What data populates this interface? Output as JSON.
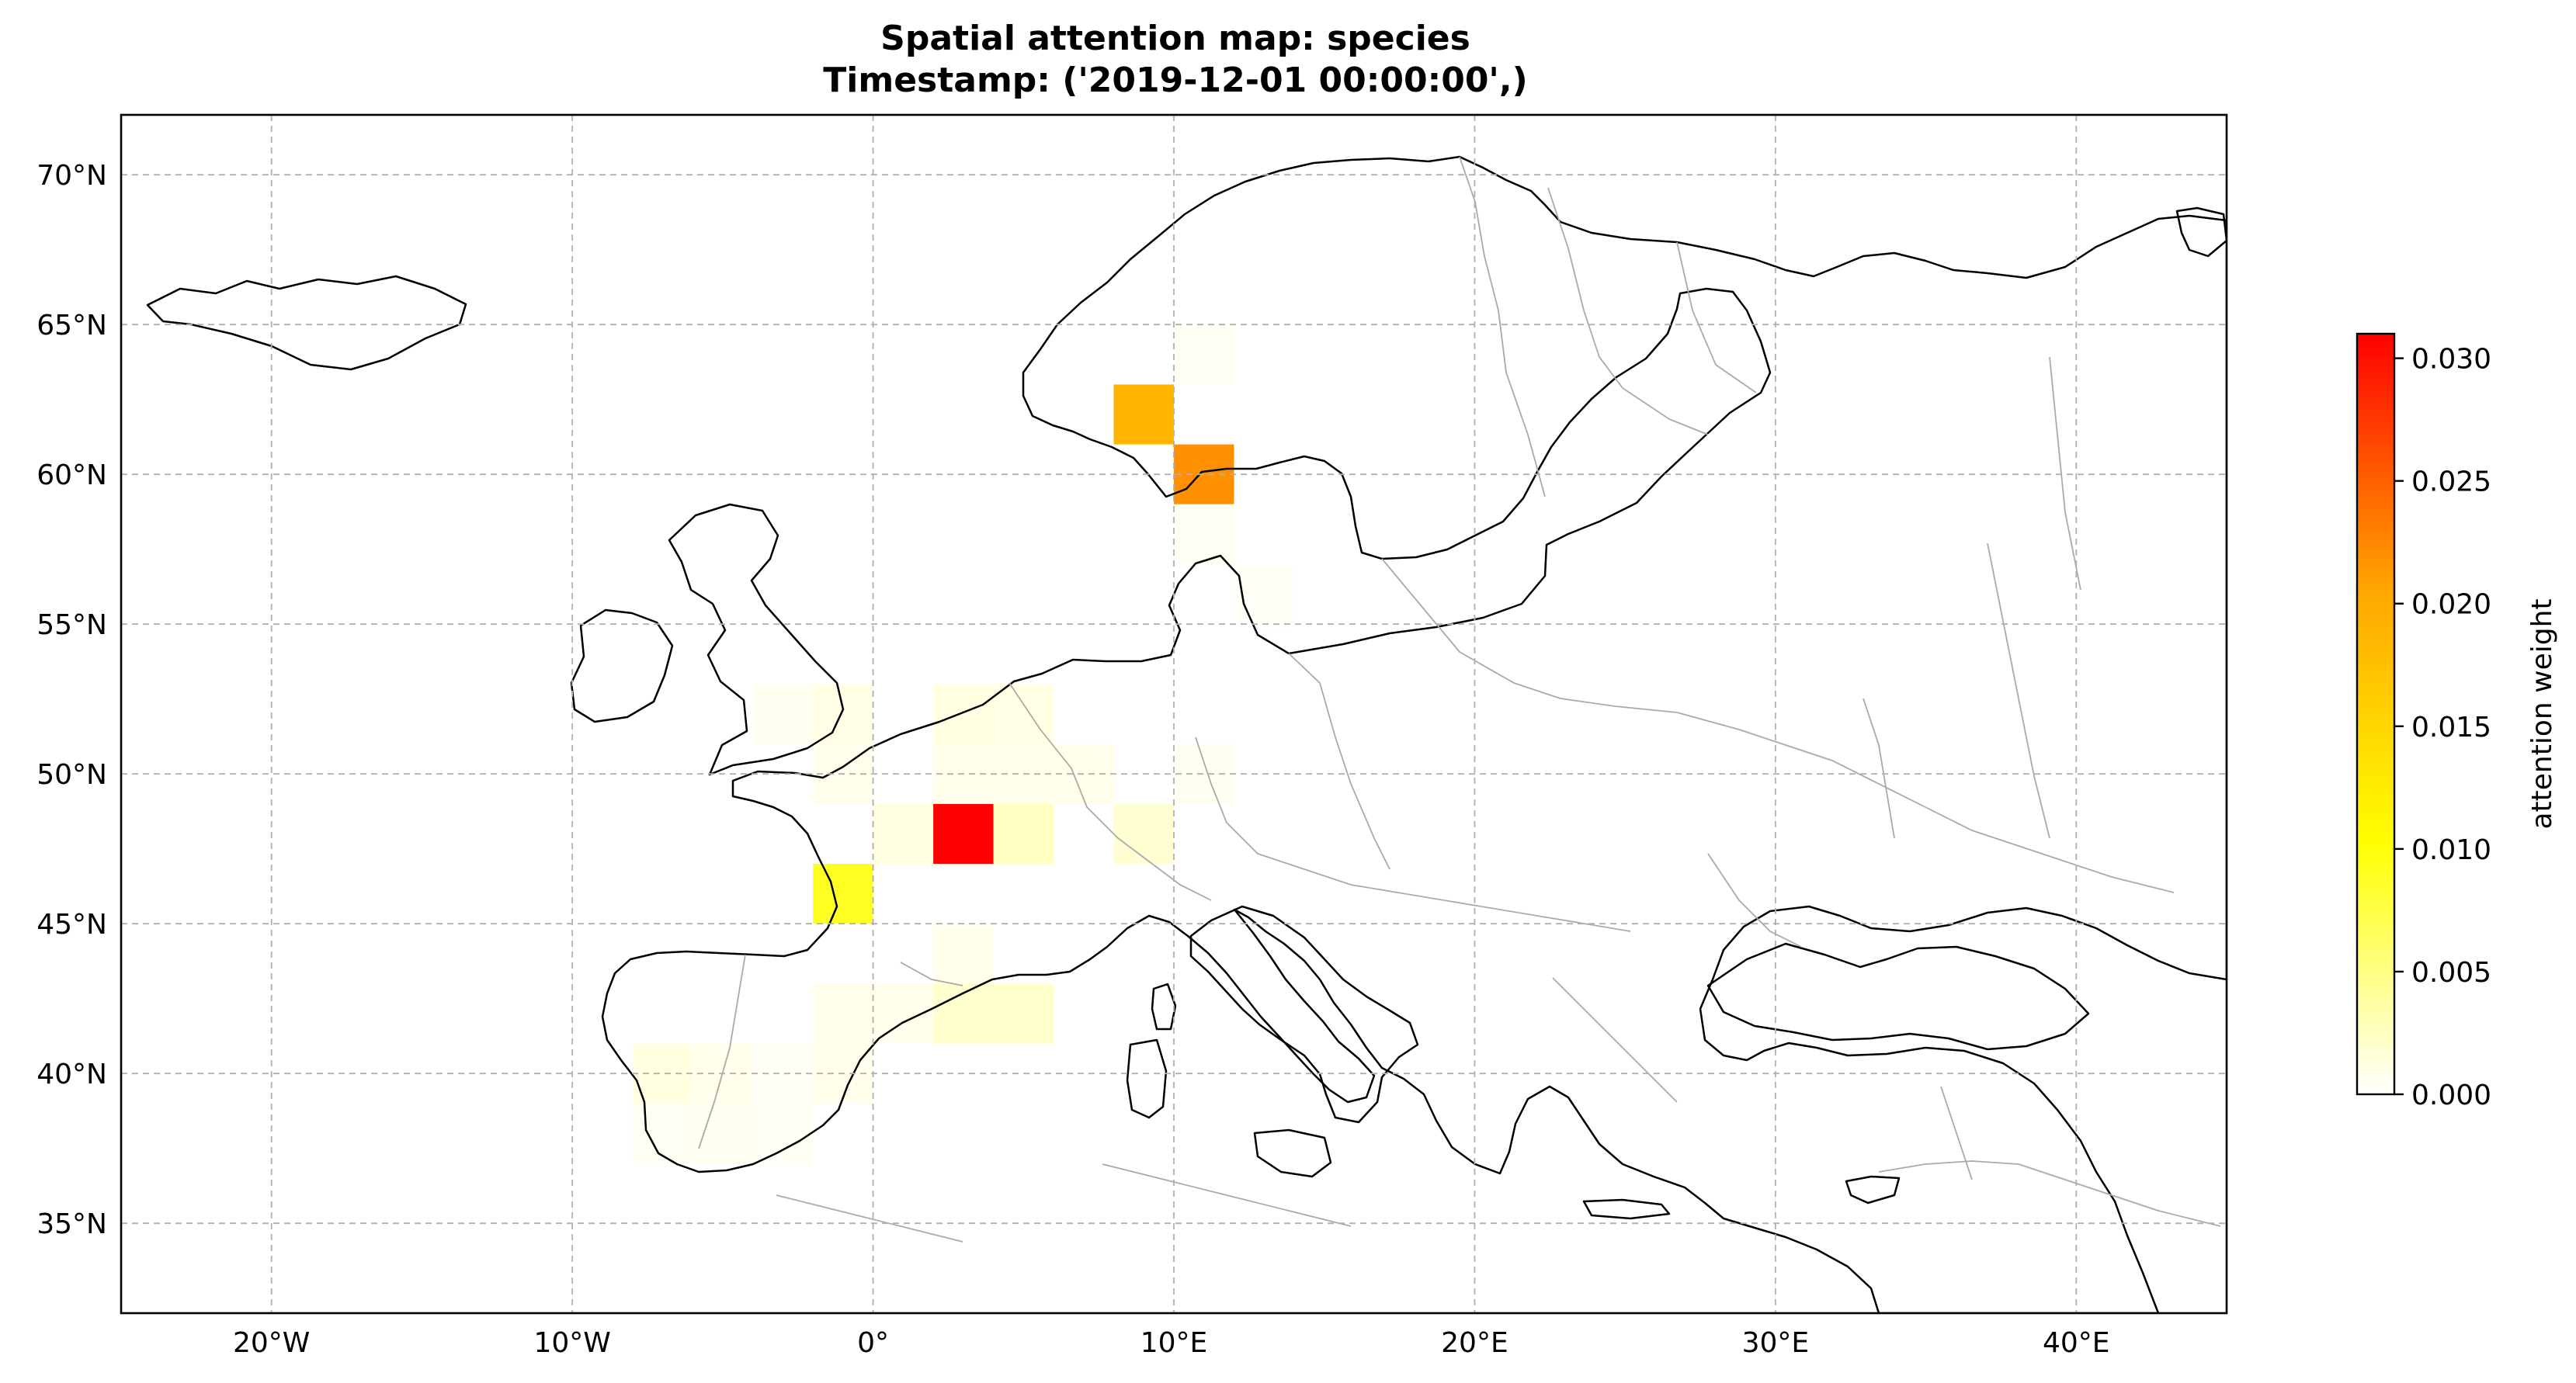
{
  "title": {
    "line1": "Spatial attention map: species",
    "line2": "Timestamp: ('2019-12-01 00:00:00',)"
  },
  "map": {
    "projection": "plate-carree",
    "lon_range": [
      -25,
      45
    ],
    "lat_range": [
      32,
      72
    ],
    "gridlines": true,
    "grid_style": "dashed",
    "lon_ticks": [
      {
        "value": -20,
        "label": "20°W"
      },
      {
        "value": -10,
        "label": "10°W"
      },
      {
        "value": 0,
        "label": "0°"
      },
      {
        "value": 10,
        "label": "10°E"
      },
      {
        "value": 20,
        "label": "20°E"
      },
      {
        "value": 30,
        "label": "30°E"
      },
      {
        "value": 40,
        "label": "40°E"
      }
    ],
    "lat_ticks": [
      {
        "value": 70,
        "label": "70°N"
      },
      {
        "value": 65,
        "label": "65°N"
      },
      {
        "value": 60,
        "label": "60°N"
      },
      {
        "value": 55,
        "label": "55°N"
      },
      {
        "value": 50,
        "label": "50°N"
      },
      {
        "value": 45,
        "label": "45°N"
      },
      {
        "value": 40,
        "label": "40°N"
      },
      {
        "value": 35,
        "label": "35°N"
      }
    ],
    "coastline_color": "#000000",
    "border_color": "#aaaaaa"
  },
  "colorbar": {
    "label": "attention weight",
    "colormap": [
      "#ffffff",
      "#ffff00",
      "#ffa500",
      "#ff0000"
    ],
    "range": [
      0,
      0.031
    ],
    "ticks": [
      {
        "value": 0.0,
        "label": "0.000"
      },
      {
        "value": 0.005,
        "label": "0.005"
      },
      {
        "value": 0.01,
        "label": "0.010"
      },
      {
        "value": 0.015,
        "label": "0.015"
      },
      {
        "value": 0.02,
        "label": "0.020"
      },
      {
        "value": 0.025,
        "label": "0.025"
      },
      {
        "value": 0.03,
        "label": "0.030"
      }
    ]
  },
  "chart_data": {
    "type": "heatmap",
    "title": "Spatial attention map: species / Timestamp: ('2019-12-01 00:00:00',)",
    "cell_size_deg": 2,
    "value_label": "attention weight",
    "cells": [
      {
        "lon": 3,
        "lat": 48,
        "value": 0.031
      },
      {
        "lon": 9,
        "lat": 62,
        "value": 0.019
      },
      {
        "lon": 11,
        "lat": 60,
        "value": 0.022
      },
      {
        "lon": -1,
        "lat": 46,
        "value": 0.009
      },
      {
        "lon": 1,
        "lat": 48,
        "value": 0.0012
      },
      {
        "lon": 5,
        "lat": 48,
        "value": 0.0025
      },
      {
        "lon": 9,
        "lat": 48,
        "value": 0.0018
      },
      {
        "lon": 3,
        "lat": 52,
        "value": 0.0012
      },
      {
        "lon": 5,
        "lat": 52,
        "value": 0.001
      },
      {
        "lon": 3,
        "lat": 50,
        "value": 0.0008
      },
      {
        "lon": 5,
        "lat": 50,
        "value": 0.0008
      },
      {
        "lon": 7,
        "lat": 50,
        "value": 0.0008
      },
      {
        "lon": -1,
        "lat": 52,
        "value": 0.001
      },
      {
        "lon": -3,
        "lat": 52,
        "value": 0.0006
      },
      {
        "lon": -1,
        "lat": 50,
        "value": 0.0008
      },
      {
        "lon": 11,
        "lat": 50,
        "value": 0.0006
      },
      {
        "lon": 3,
        "lat": 44,
        "value": 0.0008
      },
      {
        "lon": 3,
        "lat": 42,
        "value": 0.002
      },
      {
        "lon": 5,
        "lat": 42,
        "value": 0.002
      },
      {
        "lon": 1,
        "lat": 42,
        "value": 0.0008
      },
      {
        "lon": -1,
        "lat": 42,
        "value": 0.0008
      },
      {
        "lon": -1,
        "lat": 40,
        "value": 0.0008
      },
      {
        "lon": -7,
        "lat": 40,
        "value": 0.0012
      },
      {
        "lon": -5,
        "lat": 40,
        "value": 0.0008
      },
      {
        "lon": -5,
        "lat": 38,
        "value": 0.0006
      },
      {
        "lon": -3,
        "lat": 40,
        "value": 0.0005
      },
      {
        "lon": -3,
        "lat": 38,
        "value": 0.0004
      },
      {
        "lon": -7,
        "lat": 38,
        "value": 0.0005
      },
      {
        "lon": 11,
        "lat": 58,
        "value": 0.0004
      },
      {
        "lon": 11,
        "lat": 64,
        "value": 0.0004
      },
      {
        "lon": 13,
        "lat": 56,
        "value": 0.0003
      }
    ]
  }
}
